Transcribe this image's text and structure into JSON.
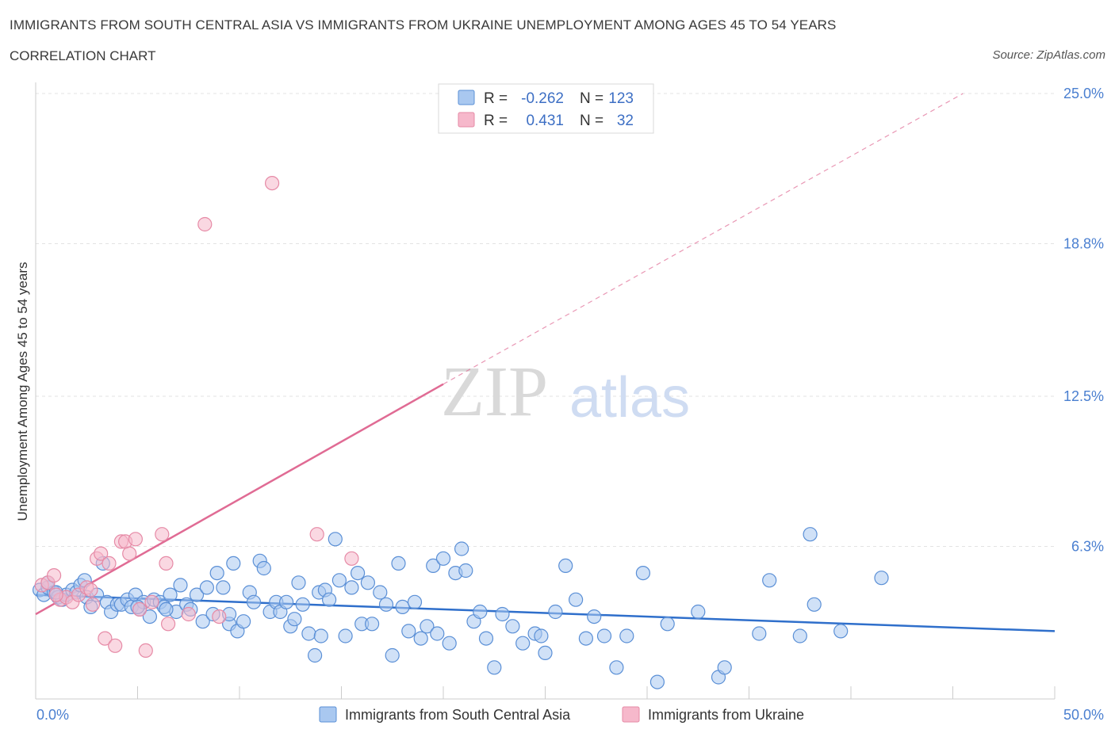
{
  "header": {
    "title": "IMMIGRANTS FROM SOUTH CENTRAL ASIA VS IMMIGRANTS FROM UKRAINE UNEMPLOYMENT AMONG AGES 45 TO 54 YEARS",
    "subtitle": "CORRELATION CHART",
    "source": "Source: ZipAtlas.com"
  },
  "watermark": {
    "zip": "ZIP",
    "atlas": "atlas"
  },
  "legend": {
    "series1": {
      "r_label": "R =",
      "r_value": "-0.262",
      "n_label": "N =",
      "n_value": "123"
    },
    "series2": {
      "r_label": "R =",
      "r_value": "0.431",
      "n_label": "N =",
      "n_value": "32"
    }
  },
  "colors": {
    "blue_fill": "#a9c8f0",
    "blue_stroke": "#5a8fd6",
    "blue_line": "#2f6fcb",
    "pink_fill": "#f6b8cb",
    "pink_stroke": "#e68aa6",
    "pink_line": "#e06b94"
  },
  "chart_data": {
    "type": "scatter",
    "title": "IMMIGRANTS FROM SOUTH CENTRAL ASIA VS IMMIGRANTS FROM UKRAINE UNEMPLOYMENT AMONG AGES 45 TO 54 YEARS",
    "xlabel": "",
    "ylabel": "Unemployment Among Ages 45 to 54 years",
    "xlim": [
      0,
      50
    ],
    "ylim": [
      0,
      25
    ],
    "x_tick_labels": [
      "0.0%",
      "50.0%"
    ],
    "y_ticks": [
      6.3,
      12.5,
      18.8,
      25.0
    ],
    "y_tick_labels": [
      "6.3%",
      "12.5%",
      "18.8%",
      "25.0%"
    ],
    "grid": true,
    "legend_position": "top-center",
    "series": [
      {
        "name": "Immigrants from South Central Asia",
        "color": "#a9c8f0",
        "trend": {
          "x": [
            0,
            50
          ],
          "y": [
            4.3,
            2.8
          ]
        },
        "points": [
          [
            0.2,
            4.5
          ],
          [
            0.4,
            4.3
          ],
          [
            0.6,
            4.6
          ],
          [
            0.9,
            4.4
          ],
          [
            1.1,
            4.2
          ],
          [
            1.3,
            4.1
          ],
          [
            1.5,
            4.3
          ],
          [
            1.8,
            4.5
          ],
          [
            2.0,
            4.4
          ],
          [
            2.2,
            4.7
          ],
          [
            2.5,
            4.2
          ],
          [
            2.7,
            3.8
          ],
          [
            3.0,
            4.3
          ],
          [
            3.3,
            5.6
          ],
          [
            3.5,
            4.0
          ],
          [
            3.7,
            3.6
          ],
          [
            4.0,
            3.9
          ],
          [
            4.2,
            3.9
          ],
          [
            4.5,
            4.1
          ],
          [
            4.7,
            3.8
          ],
          [
            4.9,
            4.3
          ],
          [
            5.1,
            3.7
          ],
          [
            5.3,
            4.0
          ],
          [
            5.6,
            3.4
          ],
          [
            5.8,
            4.1
          ],
          [
            6.1,
            4.0
          ],
          [
            6.3,
            3.8
          ],
          [
            6.6,
            4.3
          ],
          [
            6.9,
            3.6
          ],
          [
            7.1,
            4.7
          ],
          [
            7.4,
            3.9
          ],
          [
            7.6,
            3.7
          ],
          [
            7.9,
            4.3
          ],
          [
            8.2,
            3.2
          ],
          [
            8.4,
            4.6
          ],
          [
            8.7,
            3.5
          ],
          [
            8.9,
            5.2
          ],
          [
            9.2,
            4.6
          ],
          [
            9.5,
            3.1
          ],
          [
            9.7,
            5.6
          ],
          [
            9.9,
            2.8
          ],
          [
            10.2,
            3.2
          ],
          [
            10.5,
            4.4
          ],
          [
            10.7,
            4.0
          ],
          [
            11.0,
            5.7
          ],
          [
            11.2,
            5.4
          ],
          [
            11.5,
            3.6
          ],
          [
            11.8,
            4.0
          ],
          [
            12.0,
            3.6
          ],
          [
            12.3,
            4.0
          ],
          [
            12.5,
            3.0
          ],
          [
            12.7,
            3.3
          ],
          [
            12.9,
            4.8
          ],
          [
            13.1,
            3.9
          ],
          [
            13.4,
            2.7
          ],
          [
            13.7,
            1.8
          ],
          [
            13.9,
            4.4
          ],
          [
            14.2,
            4.5
          ],
          [
            14.4,
            4.1
          ],
          [
            14.7,
            6.6
          ],
          [
            14.9,
            4.9
          ],
          [
            15.2,
            2.6
          ],
          [
            15.5,
            4.6
          ],
          [
            15.8,
            5.2
          ],
          [
            16.0,
            3.1
          ],
          [
            16.3,
            4.8
          ],
          [
            16.5,
            3.1
          ],
          [
            16.9,
            4.4
          ],
          [
            17.2,
            3.9
          ],
          [
            17.5,
            1.8
          ],
          [
            17.8,
            5.6
          ],
          [
            18.0,
            3.8
          ],
          [
            18.3,
            2.8
          ],
          [
            18.6,
            4.0
          ],
          [
            18.9,
            2.5
          ],
          [
            19.2,
            3.0
          ],
          [
            19.5,
            5.5
          ],
          [
            19.7,
            2.7
          ],
          [
            20.0,
            5.8
          ],
          [
            20.3,
            2.3
          ],
          [
            20.6,
            5.2
          ],
          [
            20.9,
            6.2
          ],
          [
            21.1,
            5.3
          ],
          [
            21.5,
            3.2
          ],
          [
            21.8,
            3.6
          ],
          [
            22.1,
            2.5
          ],
          [
            22.5,
            1.3
          ],
          [
            22.9,
            3.5
          ],
          [
            23.4,
            3.0
          ],
          [
            23.9,
            2.3
          ],
          [
            24.5,
            2.7
          ],
          [
            25.0,
            1.9
          ],
          [
            25.5,
            3.6
          ],
          [
            26.0,
            5.5
          ],
          [
            26.5,
            4.1
          ],
          [
            27.0,
            2.5
          ],
          [
            27.4,
            3.4
          ],
          [
            27.9,
            2.6
          ],
          [
            28.5,
            1.3
          ],
          [
            29.0,
            2.6
          ],
          [
            29.8,
            5.2
          ],
          [
            30.5,
            0.7
          ],
          [
            31.0,
            3.1
          ],
          [
            32.5,
            3.6
          ],
          [
            33.5,
            0.9
          ],
          [
            33.8,
            1.3
          ],
          [
            35.5,
            2.7
          ],
          [
            36.0,
            4.9
          ],
          [
            37.5,
            2.6
          ],
          [
            38.0,
            6.8
          ],
          [
            38.2,
            3.9
          ],
          [
            39.5,
            2.8
          ],
          [
            41.5,
            5.0
          ],
          [
            0.6,
            4.8
          ],
          [
            1.0,
            4.4
          ],
          [
            2.4,
            4.9
          ],
          [
            5.0,
            3.8
          ],
          [
            6.4,
            3.7
          ],
          [
            9.5,
            3.5
          ],
          [
            14.0,
            2.6
          ],
          [
            24.8,
            2.6
          ]
        ]
      },
      {
        "name": "Immigrants from Ukraine",
        "color": "#f6b8cb",
        "trend": {
          "x": [
            0,
            20
          ],
          "y": [
            3.5,
            13.0
          ]
        },
        "trend_extension": {
          "x": [
            20,
            45.5
          ],
          "y": [
            13.0,
            25.0
          ]
        },
        "points": [
          [
            0.3,
            4.7
          ],
          [
            0.6,
            4.8
          ],
          [
            0.9,
            5.1
          ],
          [
            1.2,
            4.1
          ],
          [
            1.5,
            4.2
          ],
          [
            1.8,
            4.0
          ],
          [
            2.1,
            4.3
          ],
          [
            2.5,
            4.6
          ],
          [
            2.8,
            3.9
          ],
          [
            3.0,
            5.8
          ],
          [
            3.2,
            6.0
          ],
          [
            3.4,
            2.5
          ],
          [
            3.6,
            5.6
          ],
          [
            3.9,
            2.2
          ],
          [
            4.2,
            6.5
          ],
          [
            4.4,
            6.5
          ],
          [
            4.6,
            6.0
          ],
          [
            4.9,
            6.6
          ],
          [
            5.1,
            3.7
          ],
          [
            5.4,
            2.0
          ],
          [
            5.7,
            4.0
          ],
          [
            6.2,
            6.8
          ],
          [
            6.4,
            5.6
          ],
          [
            6.5,
            3.1
          ],
          [
            7.5,
            3.5
          ],
          [
            8.3,
            19.6
          ],
          [
            9.0,
            3.4
          ],
          [
            11.6,
            21.3
          ],
          [
            13.8,
            6.8
          ],
          [
            15.5,
            5.8
          ],
          [
            2.7,
            4.5
          ],
          [
            1.0,
            4.3
          ]
        ]
      }
    ]
  },
  "bottom_legend": {
    "series1_label": "Immigrants from South Central Asia",
    "series2_label": "Immigrants from Ukraine"
  }
}
